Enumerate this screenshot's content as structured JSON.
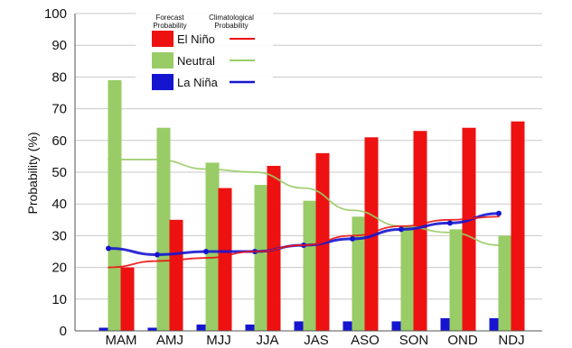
{
  "chart_data": {
    "type": "bar",
    "ylabel": "Probability (%)",
    "ylim": [
      0,
      100
    ],
    "yticks": [
      0,
      10,
      20,
      30,
      40,
      50,
      60,
      70,
      80,
      90,
      100
    ],
    "grid": "horizontal",
    "legend_placement": "top-left",
    "legend": {
      "forecast_header": "Forecast Probability",
      "climatological_header": "Climatological Probability"
    },
    "categories": [
      "MAM",
      "AMJ",
      "MJJ",
      "JJA",
      "JAS",
      "ASO",
      "SON",
      "OND",
      "NDJ"
    ],
    "series": [
      {
        "name": "La Niña",
        "color": "#1515d0",
        "values": [
          1,
          1,
          2,
          2,
          3,
          3,
          3,
          4,
          4
        ],
        "climatological": [
          26,
          24,
          25,
          25,
          27,
          29,
          32,
          34,
          37
        ]
      },
      {
        "name": "Neutral",
        "color": "#99cc66",
        "values": [
          79,
          64,
          53,
          46,
          41,
          36,
          33,
          32,
          30
        ],
        "climatological": [
          54,
          54,
          51,
          50,
          45,
          38,
          33,
          31,
          27
        ]
      },
      {
        "name": "El Niño",
        "color": "#ee1111",
        "values": [
          20,
          35,
          45,
          52,
          56,
          61,
          63,
          64,
          66
        ],
        "climatological": [
          20,
          22,
          23,
          25,
          27,
          30,
          33,
          35,
          36
        ]
      }
    ]
  }
}
